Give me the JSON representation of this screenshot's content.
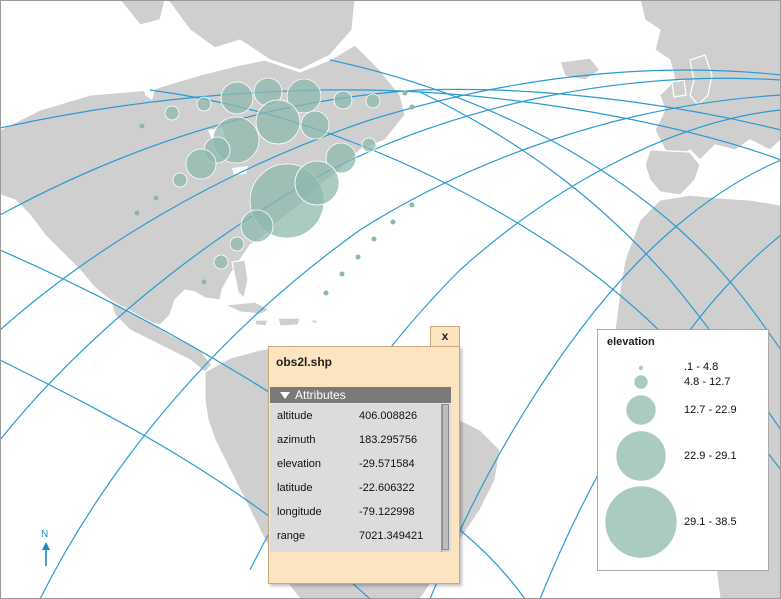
{
  "popup": {
    "title": "obs2l.shp",
    "close_label": "x",
    "section_label": "Attributes",
    "attributes": [
      {
        "name": "altitude",
        "value": "406.008826"
      },
      {
        "name": "azimuth",
        "value": "183.295756"
      },
      {
        "name": "elevation",
        "value": "-29.571584"
      },
      {
        "name": "latitude",
        "value": "-22.606322"
      },
      {
        "name": "longitude",
        "value": "-79.122998"
      },
      {
        "name": "range",
        "value": "7021.349421"
      }
    ]
  },
  "legend": {
    "title": "elevation",
    "classes": [
      ".1 - 4.8",
      "4.8 - 12.7",
      "12.7 - 22.9",
      "22.9 - 29.1",
      "29.1 - 38.5"
    ]
  },
  "north_arrow": {
    "label": "N"
  },
  "colors": {
    "land": "#cfcfcf",
    "coast": "#ffffff",
    "orbit": "#2a9bd0",
    "symbol": "#8fb8ad",
    "popup_bg": "#fde4c0"
  }
}
